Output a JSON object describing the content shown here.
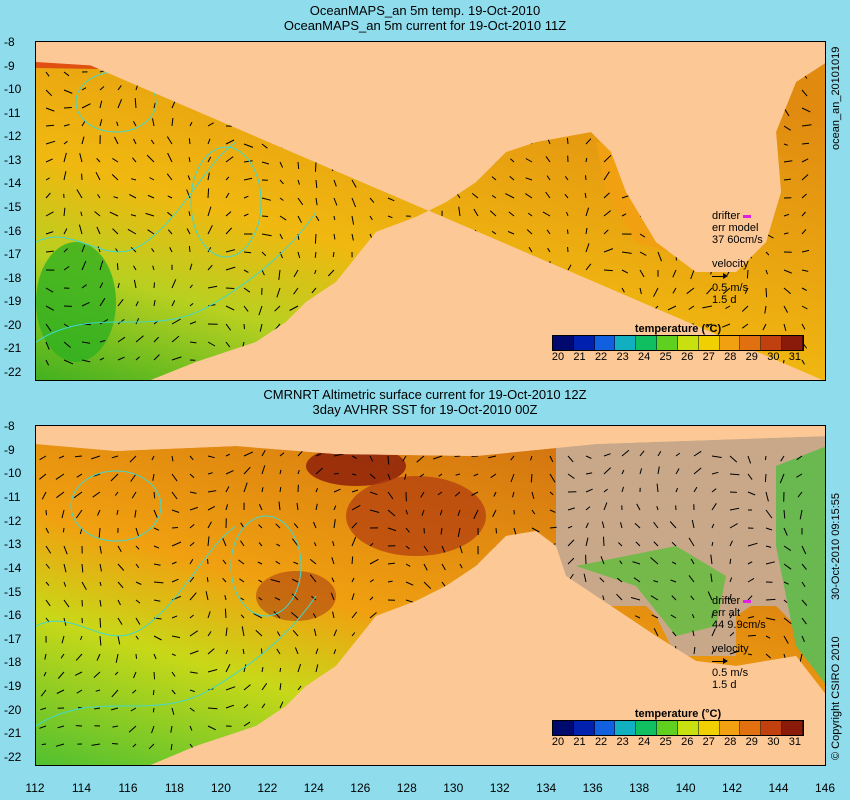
{
  "panels": [
    {
      "title_line1": "OceanMAPS_an 5m temp. 19-Oct-2010",
      "title_line2": "OceanMAPS_an 5m current for 19-Oct-2010 11Z",
      "side_label": "ocean_an_20101019",
      "legend": {
        "line1": "drifter",
        "line2": "err model",
        "line3": "37 60cm/s",
        "velocity": "velocity",
        "vel_scale": "0.5 m/s",
        "vel_days": "1.5 d"
      }
    },
    {
      "title_line1": "CMRNRT Altimetric surface current for 19-Oct-2010 12Z",
      "title_line2": "3day AVHRR SST for 19-Oct-2010 00Z",
      "side_label": "30-Oct-2010 09:15:55",
      "side_label2": "© Copyright CSIRO 2010",
      "legend": {
        "line1": "drifter",
        "line2": "err alt",
        "line3": "44 9.9cm/s",
        "velocity": "velocity",
        "vel_scale": "0.5 m/s",
        "vel_days": "1.5 d"
      }
    }
  ],
  "colorbar": {
    "title": "temperature (°C)",
    "ticks": [
      "20",
      "21",
      "22",
      "23",
      "24",
      "25",
      "26",
      "27",
      "28",
      "29",
      "30",
      "31"
    ],
    "colors": [
      "#000a6e",
      "#0020b0",
      "#1060e0",
      "#10b0c0",
      "#10c060",
      "#60d020",
      "#c8e010",
      "#f0d000",
      "#f0a010",
      "#e07010",
      "#c04010",
      "#8a1a0a"
    ]
  },
  "y_ticks": [
    "-8",
    "-9",
    "-10",
    "-11",
    "-12",
    "-13",
    "-14",
    "-15",
    "-16",
    "-17",
    "-18",
    "-19",
    "-20",
    "-21",
    "-22"
  ],
  "x_ticks": [
    "112",
    "114",
    "116",
    "118",
    "120",
    "122",
    "124",
    "126",
    "128",
    "130",
    "132",
    "134",
    "136",
    "138",
    "140",
    "142",
    "144",
    "146"
  ],
  "colors": {
    "background": "#8fdcec",
    "land": "#fcc896",
    "contour": "#40d8d0",
    "drifter": "#e020e0",
    "no_data": "#c8a888"
  }
}
